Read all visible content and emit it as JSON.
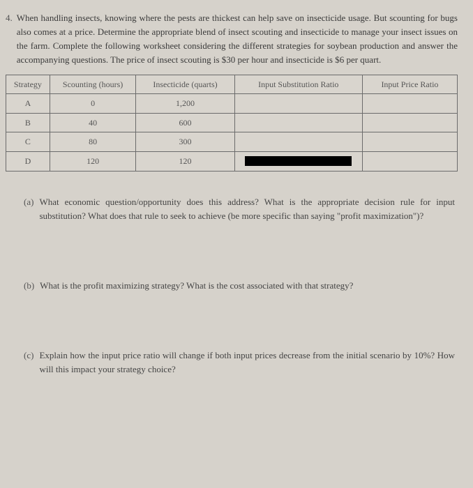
{
  "question": {
    "number": "4.",
    "text": "When handling insects, knowing where the pests are thickest can help save on insecticide usage. But scounting for bugs also comes at a price. Determine the appropriate blend of insect scouting and insecticide to manage your insect issues on the farm. Complete the following worksheet considering the different strategies for soybean production and answer the accompanying questions. The price of insect scouting is $30 per hour and insecticide is $6 per quart."
  },
  "table": {
    "columns": [
      "Strategy",
      "Scounting (hours)",
      "Insecticide (quarts)",
      "Input Substitution Ratio",
      "Input Price Ratio"
    ],
    "rows": [
      {
        "strategy": "A",
        "scouting": "0",
        "insecticide": "1,200",
        "isr": "",
        "ipr": "",
        "redact": false
      },
      {
        "strategy": "B",
        "scouting": "40",
        "insecticide": "600",
        "isr": "",
        "ipr": "",
        "redact": false
      },
      {
        "strategy": "C",
        "scouting": "80",
        "insecticide": "300",
        "isr": "",
        "ipr": "",
        "redact": false
      },
      {
        "strategy": "D",
        "scouting": "120",
        "insecticide": "120",
        "isr": "",
        "ipr": "",
        "redact": true
      }
    ]
  },
  "subs": {
    "a": {
      "label": "(a)",
      "text": "What economic question/opportunity does this address? What is the appropriate decision rule for input substitution? What does that rule to seek to achieve (be more specific than saying \"profit maximization\")?"
    },
    "b": {
      "label": "(b)",
      "text": "What is the profit maximizing strategy? What is the cost associated with that strategy?"
    },
    "c": {
      "label": "(c)",
      "text": "Explain how the input price ratio will change if both input prices decrease from the initial scenario by 10%? How will this impact your strategy choice?"
    }
  },
  "colors": {
    "background": "#d6d2cb",
    "text": "#3a3a3a",
    "border": "#6b6b6b",
    "redact": "#000000"
  }
}
